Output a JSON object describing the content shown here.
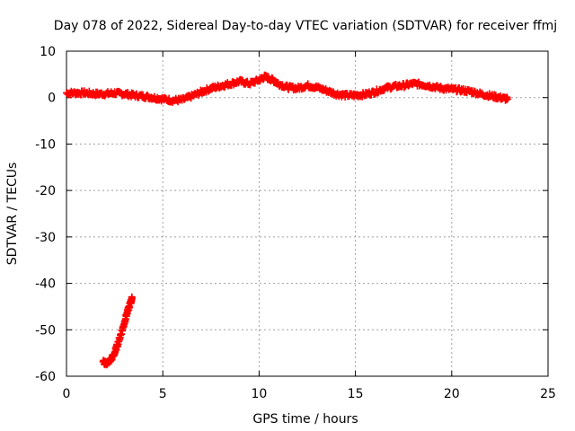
{
  "chart_data": {
    "type": "scatter",
    "title": "Day 078 of 2022, Sidereal Day-to-day VTEC variation (SDTVAR) for receiver ffmj",
    "xlabel": "GPS time / hours",
    "ylabel": "SDTVAR / TECUs",
    "xlim": [
      0,
      25
    ],
    "ylim": [
      -60,
      10
    ],
    "xticks": [
      0,
      5,
      10,
      15,
      20,
      25
    ],
    "yticks": [
      10,
      0,
      -10,
      -20,
      -30,
      -40,
      -50,
      -60
    ],
    "grid": true,
    "marker": "+",
    "color": "#ff0000",
    "series": [
      {
        "name": "main",
        "x": [
          0.0,
          0.5,
          1.0,
          1.5,
          2.0,
          2.5,
          3.0,
          3.5,
          4.0,
          4.5,
          5.0,
          5.5,
          6.0,
          6.5,
          7.0,
          7.5,
          8.0,
          8.5,
          9.0,
          9.5,
          10.0,
          10.3,
          10.7,
          11.0,
          11.5,
          12.0,
          12.5,
          13.0,
          13.5,
          14.0,
          14.5,
          15.0,
          15.5,
          16.0,
          16.5,
          17.0,
          17.5,
          18.0,
          18.5,
          19.0,
          19.5,
          20.0,
          20.5,
          21.0,
          21.5,
          22.0,
          22.5,
          22.9
        ],
        "y": [
          1.0,
          1.0,
          1.0,
          0.8,
          0.8,
          1.0,
          0.8,
          0.5,
          0.3,
          0.0,
          -0.3,
          -0.6,
          -0.5,
          0.3,
          1.2,
          2.0,
          2.5,
          3.0,
          3.5,
          3.0,
          3.8,
          4.5,
          3.8,
          3.0,
          2.2,
          2.0,
          2.6,
          2.2,
          1.5,
          0.8,
          0.5,
          0.5,
          0.7,
          1.2,
          2.0,
          2.4,
          2.6,
          3.0,
          2.8,
          2.4,
          2.0,
          1.8,
          1.6,
          1.3,
          0.8,
          0.4,
          0.0,
          -0.3
        ]
      },
      {
        "name": "segment",
        "x": [
          1.9,
          2.1,
          2.3,
          2.5,
          2.7,
          2.9,
          3.1,
          3.3,
          3.4
        ],
        "y": [
          -57.0,
          -57.2,
          -56.5,
          -55.0,
          -52.5,
          -50.0,
          -47.0,
          -44.5,
          -43.2
        ]
      }
    ]
  }
}
